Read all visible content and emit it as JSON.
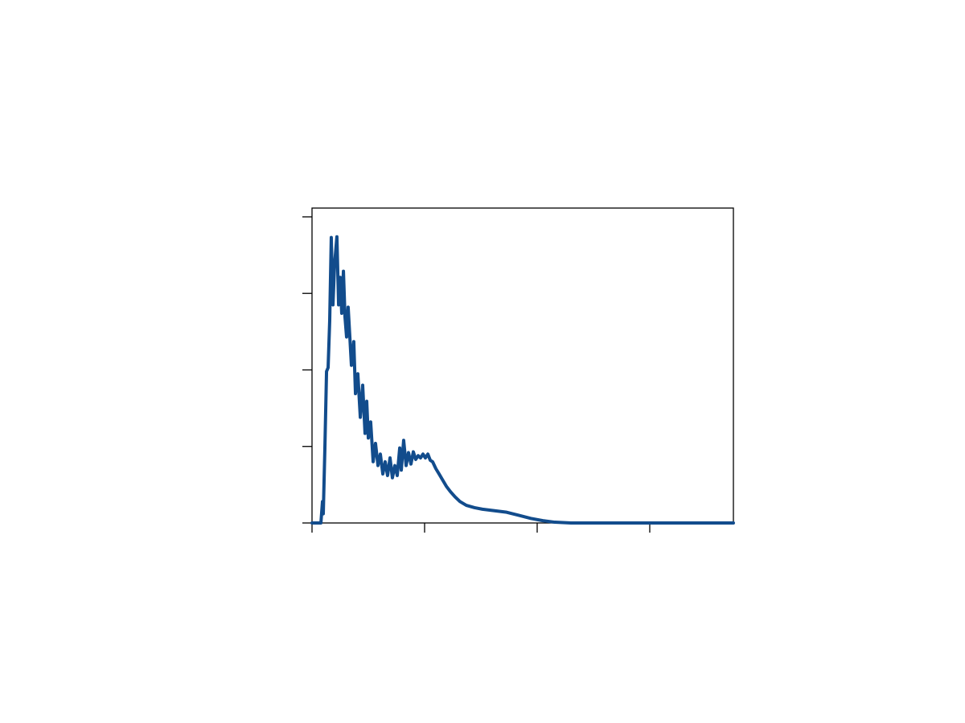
{
  "chart_data": {
    "type": "line",
    "x": [
      0,
      0.079,
      0.093,
      0.1,
      0.114,
      0.129,
      0.143,
      0.157,
      0.171,
      0.186,
      0.2,
      0.221,
      0.236,
      0.25,
      0.264,
      0.279,
      0.293,
      0.307,
      0.321,
      0.336,
      0.35,
      0.371,
      0.386,
      0.407,
      0.429,
      0.45,
      0.471,
      0.486,
      0.5,
      0.521,
      0.543,
      0.564,
      0.586,
      0.607,
      0.629,
      0.65,
      0.671,
      0.693,
      0.714,
      0.736,
      0.757,
      0.779,
      0.793,
      0.814,
      0.836,
      0.857,
      0.879,
      0.9,
      0.921,
      0.943,
      0.964,
      0.986,
      1.007,
      1.029,
      1.05,
      1.071,
      1.1,
      1.129,
      1.157,
      1.193,
      1.229,
      1.271,
      1.314,
      1.371,
      1.443,
      1.514,
      1.621,
      1.729,
      1.836,
      1.943,
      2.05,
      2.157,
      2.3,
      2.943,
      3.743
    ],
    "series": [
      {
        "color": "#124c8c",
        "values": [
          0,
          0,
          0.28,
          0.12,
          0.96,
          1.98,
          2.03,
          2.64,
          3.73,
          2.85,
          3.37,
          3.74,
          2.85,
          3.21,
          2.74,
          3.29,
          2.69,
          2.43,
          2.82,
          2.43,
          2.06,
          2.37,
          1.69,
          1.95,
          1.38,
          1.8,
          1.17,
          1.59,
          1.11,
          1.32,
          0.8,
          1.04,
          0.75,
          0.9,
          0.64,
          0.8,
          0.62,
          0.85,
          0.59,
          0.75,
          0.62,
          0.98,
          0.69,
          1.08,
          0.75,
          0.92,
          0.77,
          0.93,
          0.83,
          0.88,
          0.85,
          0.9,
          0.85,
          0.9,
          0.82,
          0.8,
          0.71,
          0.64,
          0.57,
          0.48,
          0.41,
          0.34,
          0.28,
          0.23,
          0.2,
          0.18,
          0.16,
          0.14,
          0.1,
          0.06,
          0.03,
          0.01,
          0,
          0,
          0
        ]
      }
    ],
    "xlim": [
      0,
      3.743
    ],
    "xticks": [
      0,
      1,
      2,
      3
    ],
    "ylim": [
      0,
      4.115
    ],
    "yticks": [
      0,
      1,
      2,
      3,
      4
    ],
    "grid": false
  }
}
